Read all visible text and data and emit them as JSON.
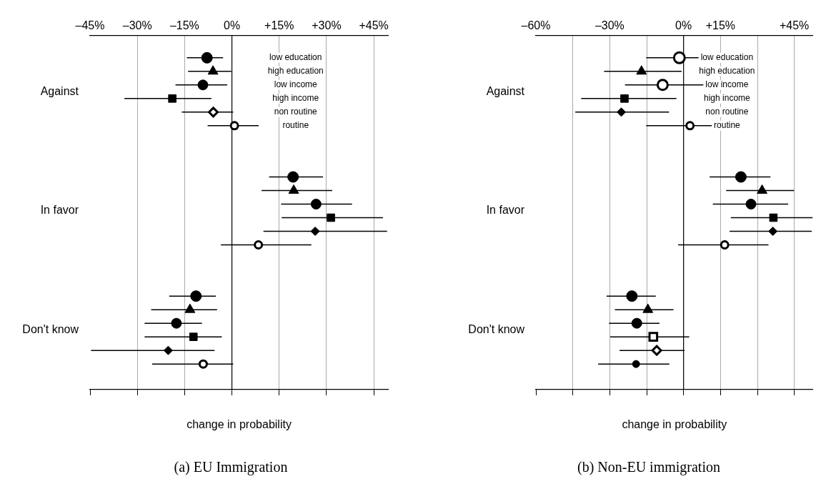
{
  "chart_data": [
    {
      "type": "scatter",
      "title": "(a) EU Immigration",
      "xlabel": "change in probability",
      "orientation": "horizontal",
      "categories": [
        "Against",
        "In favor",
        "Don't know"
      ],
      "xlim": [
        -45,
        49.5
      ],
      "xticks": [
        {
          "value": -45,
          "label": "–45%"
        },
        {
          "value": -30,
          "label": "–30%"
        },
        {
          "value": -15,
          "label": "–15%"
        },
        {
          "value": 0,
          "label": "0%"
        },
        {
          "value": 15,
          "label": "+15%"
        },
        {
          "value": 30,
          "label": "+30%"
        },
        {
          "value": 45,
          "label": "+45%"
        }
      ],
      "grid": "x",
      "legend": "top right",
      "ref_lines": [
        {
          "axis": "x",
          "value": 0,
          "color": "#000000"
        }
      ],
      "series": [
        {
          "name": "low education",
          "marker": "circle",
          "color": "#000000",
          "colors": [
            "#000000",
            "#000000",
            "#000000"
          ],
          "values": [
            -7.9,
            19.4,
            -11.4
          ],
          "errors": [
            [
              -14.3,
              -2.8
            ],
            [
              11.8,
              28.9
            ],
            [
              -19.9,
              -5.1
            ]
          ]
        },
        {
          "name": "high education",
          "marker": "triangle",
          "color": "#000000",
          "colors": [
            "#000000",
            "#000000",
            "#000000"
          ],
          "values": [
            -6.0,
            19.6,
            -13.3
          ],
          "errors": [
            [
              -13.9,
              -0.2
            ],
            [
              9.4,
              31.8
            ],
            [
              -25.6,
              -4.7
            ]
          ]
        },
        {
          "name": "low income",
          "marker": "circle",
          "color": "#000000",
          "colors": [
            "#000000",
            "#000000",
            "#000000"
          ],
          "values": [
            -9.2,
            26.7,
            -17.6
          ],
          "errors": [
            [
              -17.9,
              -1.5
            ],
            [
              15.6,
              38.1
            ],
            [
              -27.7,
              -9.5
            ]
          ]
        },
        {
          "name": "high income",
          "marker": "square",
          "color": "#000000",
          "colors": [
            "#000000",
            "#000000",
            "#000000"
          ],
          "values": [
            -18.9,
            31.4,
            -12.2
          ],
          "errors": [
            [
              -34.1,
              -6.5
            ],
            [
              15.8,
              47.9
            ],
            [
              -27.7,
              -3.2
            ]
          ]
        },
        {
          "name": "non routine",
          "marker": "diamond",
          "color": "#000000",
          "colors": [
            "#ffffff",
            "#000000",
            "#000000"
          ],
          "values": [
            -5.9,
            26.4,
            -20.2
          ],
          "errors": [
            [
              -15.9,
              0.4
            ],
            [
              10.0,
              49.2
            ],
            [
              -44.7,
              -5.5
            ]
          ]
        },
        {
          "name": "routine",
          "marker": "circle",
          "color": "#000000",
          "colors": [
            "#ffffff",
            "#ffffff",
            "#ffffff"
          ],
          "values": [
            0.8,
            8.4,
            -9.1
          ],
          "errors": [
            [
              -7.7,
              8.5
            ],
            [
              -3.5,
              25.2
            ],
            [
              -25.3,
              0.4
            ]
          ]
        }
      ]
    },
    {
      "type": "scatter",
      "title": "(b) Non-EU immigration",
      "xlabel": "change in probability",
      "orientation": "horizontal",
      "categories": [
        "Against",
        "In favor",
        "Don't know"
      ],
      "xlim": [
        -60,
        52.5
      ],
      "xticks": [
        {
          "value": -60,
          "label": "–60%"
        },
        {
          "value": -45,
          "label": null
        },
        {
          "value": -30,
          "label": "–30%"
        },
        {
          "value": -15,
          "label": null
        },
        {
          "value": 0,
          "label": "0%"
        },
        {
          "value": 15,
          "label": "+15%"
        },
        {
          "value": 30,
          "label": null
        },
        {
          "value": 45,
          "label": "+45%"
        }
      ],
      "grid": "x",
      "legend": "top right",
      "ref_lines": [
        {
          "axis": "x",
          "value": 0,
          "color": "#000000"
        }
      ],
      "series": [
        {
          "name": "low education",
          "marker": "circle",
          "color": "#000000",
          "colors": [
            "#ffffff",
            "#000000",
            "#000000"
          ],
          "values": [
            -1.7,
            23.3,
            -21.0
          ],
          "errors": [
            [
              -15.2,
              11.3
            ],
            [
              10.6,
              35.3
            ],
            [
              -31.3,
              -11.3
            ]
          ]
        },
        {
          "name": "high education",
          "marker": "triangle",
          "color": "#000000",
          "colors": [
            "#000000",
            "#000000",
            "#000000"
          ],
          "values": [
            -17.1,
            31.9,
            -14.5
          ],
          "errors": [
            [
              -32.3,
              -0.8
            ],
            [
              17.3,
              44.9
            ],
            [
              -27.9,
              -4.1
            ]
          ]
        },
        {
          "name": "low income",
          "marker": "circle",
          "color": "#000000",
          "colors": [
            "#ffffff",
            "#000000",
            "#000000"
          ],
          "values": [
            -8.5,
            27.4,
            -19.0
          ],
          "errors": [
            [
              -23.8,
              8.2
            ],
            [
              11.9,
              42.5
            ],
            [
              -30.3,
              -9.8
            ]
          ]
        },
        {
          "name": "high income",
          "marker": "square",
          "color": "#000000",
          "colors": [
            "#000000",
            "#000000",
            "#ffffff"
          ],
          "values": [
            -24.0,
            36.5,
            -12.3
          ],
          "errors": [
            [
              -41.6,
              -2.9
            ],
            [
              19.2,
              52.4
            ],
            [
              -29.8,
              2.3
            ]
          ]
        },
        {
          "name": "non routine",
          "marker": "diamond",
          "color": "#000000",
          "colors": [
            "#000000",
            "#000000",
            "#ffffff"
          ],
          "values": [
            -25.3,
            36.3,
            -10.9
          ],
          "errors": [
            [
              -44.0,
              -5.9
            ],
            [
              18.7,
              52.1
            ],
            [
              -26.0,
              0.4
            ]
          ]
        },
        {
          "name": "routine",
          "marker": "circle",
          "color": "#000000",
          "colors": [
            "#ffffff",
            "#ffffff",
            "#000000"
          ],
          "values": [
            2.6,
            16.7,
            -19.3
          ],
          "errors": [
            [
              -15.2,
              18.9
            ],
            [
              -2.2,
              34.5
            ],
            [
              -34.7,
              -5.8
            ]
          ]
        }
      ]
    }
  ]
}
